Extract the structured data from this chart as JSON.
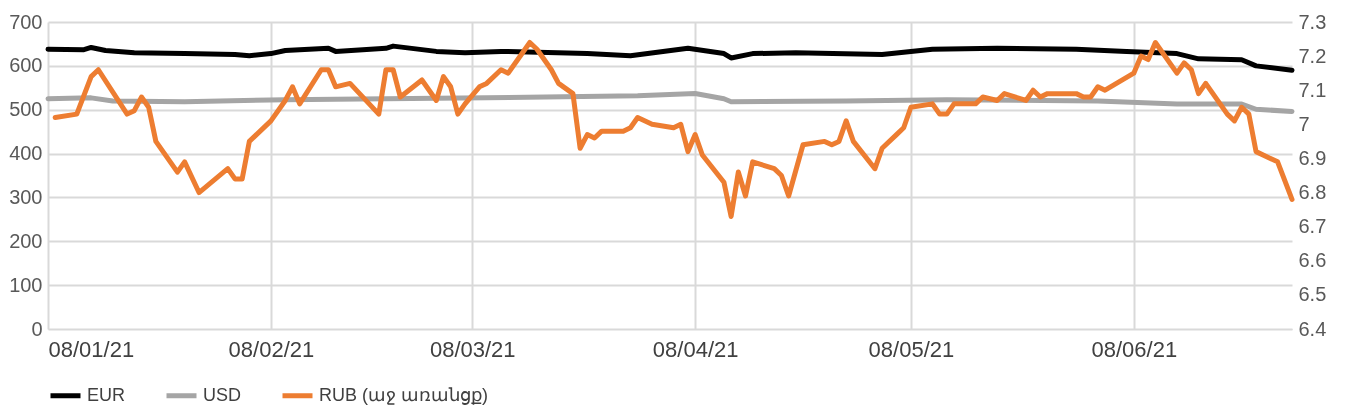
{
  "chart_data": {
    "type": "line",
    "legend": "bottom",
    "grid": true,
    "line_style": "solid",
    "marker": "none",
    "xlim": [
      "2021-01-08",
      "2021-06-30"
    ],
    "xticks": [
      {
        "value": "2021-01-08",
        "label": "08/01/21"
      },
      {
        "value": "2021-02-08",
        "label": "08/02/21"
      },
      {
        "value": "2021-03-08",
        "label": "08/03/21"
      },
      {
        "value": "2021-04-08",
        "label": "08/04/21"
      },
      {
        "value": "2021-05-08",
        "label": "08/05/21"
      },
      {
        "value": "2021-06-08",
        "label": "08/06/21"
      }
    ],
    "ylim": [
      0,
      700
    ],
    "yticks": [
      0,
      100,
      200,
      300,
      400,
      500,
      600,
      700
    ],
    "y2lim": [
      6.4,
      7.3
    ],
    "y2ticks": [
      6.4,
      6.5,
      6.6,
      6.7,
      6.8,
      6.9,
      7,
      7.1,
      7.2,
      7.3
    ],
    "series": [
      {
        "name": "EUR",
        "color": "#000000",
        "x": [
          "2021-01-08",
          "2021-01-13",
          "2021-01-14",
          "2021-01-16",
          "2021-01-20",
          "2021-01-27",
          "2021-02-03",
          "2021-02-05",
          "2021-02-08",
          "2021-02-10",
          "2021-02-16",
          "2021-02-17",
          "2021-02-24",
          "2021-02-25",
          "2021-03-03",
          "2021-03-07",
          "2021-03-12",
          "2021-03-24",
          "2021-03-30",
          "2021-04-07",
          "2021-04-12",
          "2021-04-13",
          "2021-04-16",
          "2021-04-22",
          "2021-05-04",
          "2021-05-11",
          "2021-05-20",
          "2021-05-31",
          "2021-06-07",
          "2021-06-14",
          "2021-06-17",
          "2021-06-23",
          "2021-06-25",
          "2021-06-30"
        ],
        "values": [
          638,
          637,
          642,
          635,
          630,
          628,
          626,
          623,
          628,
          635,
          640,
          633,
          640,
          645,
          633,
          630,
          633,
          628,
          623,
          640,
          628,
          618,
          628,
          630,
          626,
          638,
          640,
          638,
          633,
          628,
          616,
          614,
          600,
          590
        ]
      },
      {
        "name": "USD",
        "color": "#a5a5a5",
        "x": [
          "2021-01-08",
          "2021-01-14",
          "2021-01-17",
          "2021-01-27",
          "2021-02-10",
          "2021-03-10",
          "2021-03-31",
          "2021-04-08",
          "2021-04-12",
          "2021-04-13",
          "2021-04-29",
          "2021-05-13",
          "2021-06-03",
          "2021-06-14",
          "2021-06-23",
          "2021-06-25",
          "2021-06-30"
        ],
        "values": [
          525,
          527,
          520,
          518,
          523,
          527,
          532,
          537,
          525,
          518,
          520,
          523,
          520,
          513,
          513,
          501,
          496
        ]
      },
      {
        "name": "RUB (աջ առանցք)",
        "color": "#ed7d31",
        "axis": "y2",
        "x": [
          "2021-01-09",
          "2021-01-12",
          "2021-01-14",
          "2021-01-15",
          "2021-01-19",
          "2021-01-20",
          "2021-01-21",
          "2021-01-22",
          "2021-01-23",
          "2021-01-26",
          "2021-01-27",
          "2021-01-29",
          "2021-02-02",
          "2021-02-03",
          "2021-02-04",
          "2021-02-05",
          "2021-02-08",
          "2021-02-10",
          "2021-02-11",
          "2021-02-12",
          "2021-02-15",
          "2021-02-16",
          "2021-02-17",
          "2021-02-19",
          "2021-02-23",
          "2021-02-24",
          "2021-02-25",
          "2021-02-26",
          "2021-03-01",
          "2021-03-03",
          "2021-03-04",
          "2021-03-05",
          "2021-03-06",
          "2021-03-07",
          "2021-03-09",
          "2021-03-10",
          "2021-03-12",
          "2021-03-13",
          "2021-03-16",
          "2021-03-17",
          "2021-03-19",
          "2021-03-20",
          "2021-03-22",
          "2021-03-23",
          "2021-03-24",
          "2021-03-25",
          "2021-03-26",
          "2021-03-29",
          "2021-03-30",
          "2021-03-31",
          "2021-04-02",
          "2021-04-05",
          "2021-04-06",
          "2021-04-07",
          "2021-04-08",
          "2021-04-09",
          "2021-04-12",
          "2021-04-13",
          "2021-04-14",
          "2021-04-15",
          "2021-04-16",
          "2021-04-19",
          "2021-04-20",
          "2021-04-21",
          "2021-04-23",
          "2021-04-26",
          "2021-04-27",
          "2021-04-28",
          "2021-04-29",
          "2021-04-30",
          "2021-05-03",
          "2021-05-04",
          "2021-05-06",
          "2021-05-07",
          "2021-05-08",
          "2021-05-11",
          "2021-05-12",
          "2021-05-13",
          "2021-05-14",
          "2021-05-17",
          "2021-05-18",
          "2021-05-20",
          "2021-05-21",
          "2021-05-24",
          "2021-05-25",
          "2021-05-26",
          "2021-05-27",
          "2021-05-31",
          "2021-06-01",
          "2021-06-02",
          "2021-06-03",
          "2021-06-04",
          "2021-06-08",
          "2021-06-09",
          "2021-06-10",
          "2021-06-11",
          "2021-06-14",
          "2021-06-15",
          "2021-06-16",
          "2021-06-17",
          "2021-06-18",
          "2021-06-21",
          "2021-06-22",
          "2021-06-23",
          "2021-06-24",
          "2021-06-25",
          "2021-06-28",
          "2021-06-30"
        ],
        "values": [
          7.02,
          7.03,
          7.14,
          7.16,
          7.03,
          7.04,
          7.08,
          7.05,
          6.95,
          6.86,
          6.89,
          6.8,
          6.87,
          6.84,
          6.84,
          6.95,
          7.01,
          7.07,
          7.11,
          7.06,
          7.16,
          7.16,
          7.11,
          7.12,
          7.03,
          7.16,
          7.16,
          7.08,
          7.13,
          7.07,
          7.14,
          7.11,
          7.03,
          7.06,
          7.11,
          7.12,
          7.16,
          7.15,
          7.24,
          7.22,
          7.16,
          7.12,
          7.09,
          6.93,
          6.97,
          6.96,
          6.98,
          6.98,
          6.99,
          7.02,
          7,
          6.99,
          7,
          6.92,
          6.97,
          6.91,
          6.83,
          6.73,
          6.86,
          6.79,
          6.89,
          6.87,
          6.85,
          6.79,
          6.94,
          6.95,
          6.94,
          6.95,
          7.01,
          6.95,
          6.87,
          6.93,
          6.97,
          6.99,
          7.05,
          7.06,
          7.03,
          7.03,
          7.06,
          7.06,
          7.08,
          7.07,
          7.09,
          7.07,
          7.1,
          7.08,
          7.09,
          7.09,
          7.08,
          7.08,
          7.11,
          7.1,
          7.15,
          7.2,
          7.19,
          7.24,
          7.15,
          7.18,
          7.16,
          7.09,
          7.12,
          7.03,
          7.01,
          7.05,
          7.03,
          6.92,
          6.89,
          6.78
        ]
      }
    ]
  }
}
